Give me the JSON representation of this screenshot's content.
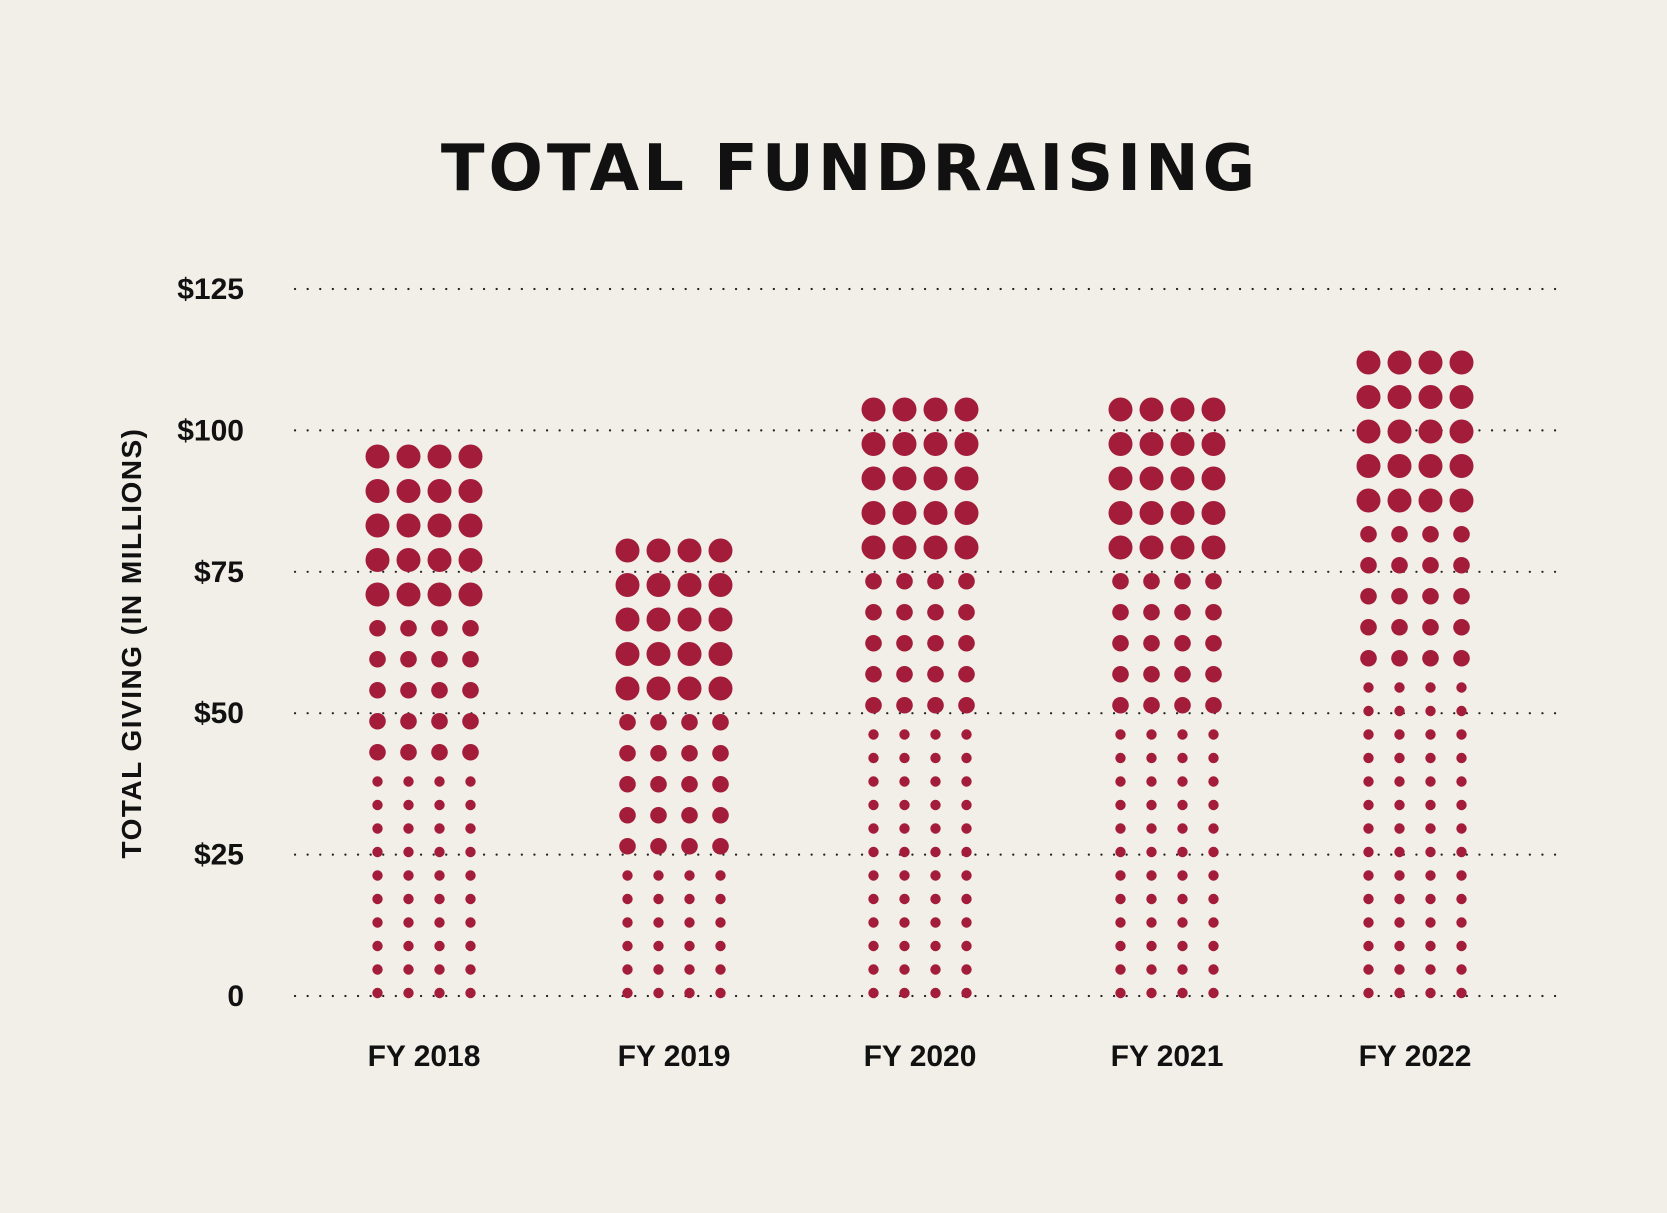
{
  "chart_data": {
    "type": "bar",
    "style": "dot-matrix",
    "title": "TOTAL FUNDRAISING",
    "ylabel": "TOTAL GIVING (IN MILLIONS)",
    "xlabel": "",
    "categories": [
      "FY 2018",
      "FY 2019",
      "FY 2020",
      "FY 2021",
      "FY 2022"
    ],
    "values": [
      95,
      79,
      107,
      103,
      114
    ],
    "ylim": [
      0,
      125
    ],
    "yticks": [
      0,
      25,
      50,
      75,
      100,
      125
    ],
    "ytick_labels": [
      "0",
      "$25",
      "$50",
      "$75",
      "$100",
      "$125"
    ],
    "grid": true,
    "grid_style": "dotted",
    "dot_color": "#a31d3a",
    "background_color": "#f2efe8",
    "dots_per_row": 4,
    "tiers": {
      "FY 2018": {
        "small": 10,
        "medium": 5,
        "large": 5
      },
      "FY 2019": {
        "small": 6,
        "medium": 5,
        "large": 5
      },
      "FY 2020": {
        "small": 12,
        "medium": 5,
        "large": 5
      },
      "FY 2021": {
        "small": 12,
        "medium": 5,
        "large": 5
      },
      "FY 2022": {
        "small": 14,
        "medium": 5,
        "large": 5
      }
    }
  }
}
